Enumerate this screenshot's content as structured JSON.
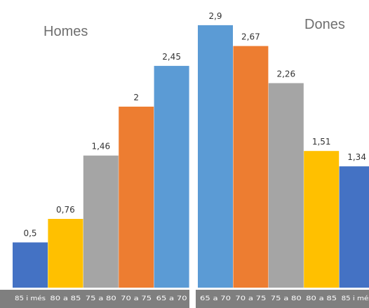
{
  "chart_data": [
    {
      "type": "bar",
      "title": "Homes",
      "categories": [
        "85 i més",
        "80 a 85",
        "75 a 80",
        "70 a 75",
        "65 a 70"
      ],
      "values": [
        0.5,
        0.76,
        1.46,
        2,
        2.45
      ],
      "value_labels": [
        "0,5",
        "0,76",
        "1,46",
        "2",
        "2,45"
      ],
      "colors": [
        "#4472c4",
        "#ffc000",
        "#a5a5a5",
        "#ed7d31",
        "#5b9bd5"
      ],
      "ylim": [
        0,
        3.3
      ],
      "grid": false
    },
    {
      "type": "bar",
      "title": "Dones",
      "categories": [
        "65 a 70",
        "70 a 75",
        "75 a 80",
        "80 a 85",
        "85 i més"
      ],
      "values": [
        2.9,
        2.67,
        2.26,
        1.51,
        1.34
      ],
      "value_labels": [
        "2,9",
        "2,67",
        "2,26",
        "1,51",
        "1,34"
      ],
      "colors": [
        "#5b9bd5",
        "#ed7d31",
        "#a5a5a5",
        "#ffc000",
        "#4472c4"
      ],
      "ylim": [
        0,
        3.3
      ],
      "grid": false
    }
  ],
  "style": {
    "axis_strip_color": "#7f7f7f",
    "separator_color": "#ffffff"
  }
}
